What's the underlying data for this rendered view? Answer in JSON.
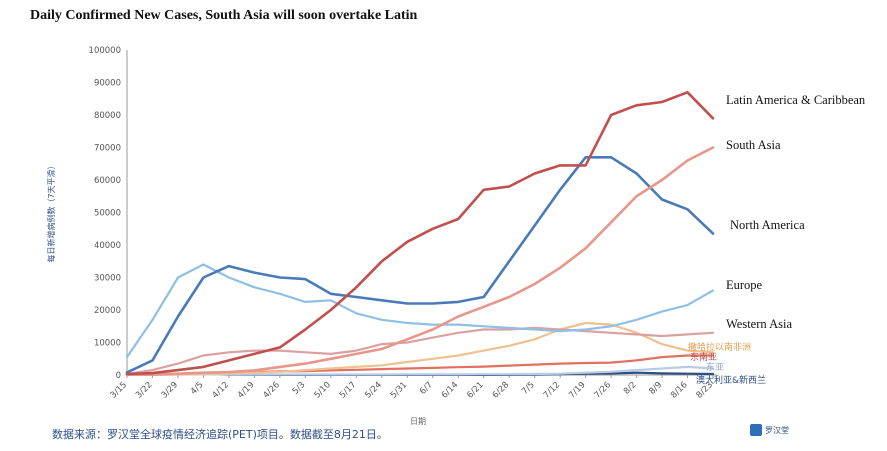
{
  "chart_data": {
    "type": "line",
    "title": "Daily Confirmed New Cases, South Asia will soon overtake Latin",
    "ylabel": "每日新增病例数（7天平滑）",
    "xlabel": "日期",
    "ylim": [
      0,
      100000
    ],
    "yticks": [
      0,
      10000,
      20000,
      30000,
      40000,
      50000,
      60000,
      70000,
      80000,
      90000,
      100000
    ],
    "x": [
      "3/15",
      "3/22",
      "3/29",
      "4/5",
      "4/12",
      "4/19",
      "4/26",
      "5/3",
      "5/10",
      "5/17",
      "5/24",
      "5/31",
      "6/7",
      "6/14",
      "6/21",
      "6/28",
      "7/5",
      "7/12",
      "7/19",
      "7/26",
      "8/2",
      "8/9",
      "8/16",
      "8/23"
    ],
    "series": [
      {
        "name": "Latin America & Caribbean",
        "color": "#c0504d",
        "values": [
          300,
          600,
          1500,
          2500,
          4500,
          6500,
          8500,
          14000,
          20000,
          27000,
          35000,
          41000,
          45000,
          48000,
          57000,
          58000,
          62000,
          64500,
          64500,
          80000,
          83000,
          84000,
          87000,
          79000
        ]
      },
      {
        "name": "South Asia",
        "color": "#e8968a",
        "values": [
          100,
          200,
          400,
          700,
          900,
          1400,
          2500,
          3500,
          5000,
          6500,
          8000,
          11000,
          14000,
          18000,
          21000,
          24000,
          28000,
          33000,
          39000,
          47000,
          55000,
          60000,
          66000,
          70000
        ]
      },
      {
        "name": "North America",
        "color": "#4a7ab8",
        "values": [
          800,
          4500,
          18000,
          30000,
          33500,
          31500,
          30000,
          29500,
          25000,
          24000,
          23000,
          22000,
          22000,
          22500,
          24000,
          35000,
          46000,
          57000,
          67000,
          67000,
          62000,
          54000,
          51000,
          43500
        ]
      },
      {
        "name": "Europe",
        "color": "#8fc0e4",
        "values": [
          5500,
          17000,
          30000,
          34000,
          30000,
          27000,
          25000,
          22500,
          23000,
          19000,
          17000,
          16000,
          15500,
          15500,
          15000,
          14500,
          14000,
          13500,
          14000,
          15000,
          17000,
          19500,
          21500,
          26000
        ]
      },
      {
        "name": "Western Asia",
        "color": "#dba0a0",
        "values": [
          300,
          1500,
          3500,
          6000,
          7000,
          7500,
          7500,
          7000,
          6500,
          7500,
          9500,
          10000,
          11500,
          13000,
          14000,
          14000,
          14500,
          14000,
          13500,
          13000,
          12500,
          12000,
          12500,
          13000
        ]
      },
      {
        "name": "撒哈拉以南非洲",
        "color": "#f0c090",
        "values": [
          50,
          100,
          200,
          350,
          500,
          700,
          1000,
          1500,
          2000,
          2500,
          3000,
          4000,
          5000,
          6000,
          7500,
          9000,
          11000,
          14000,
          16000,
          15500,
          13000,
          9500,
          7500,
          7000
        ]
      },
      {
        "name": "东南亚",
        "color": "#e07060",
        "values": [
          100,
          150,
          300,
          500,
          700,
          900,
          1100,
          1200,
          1400,
          1600,
          1800,
          2000,
          2200,
          2400,
          2600,
          2900,
          3200,
          3500,
          3700,
          3800,
          4500,
          5500,
          6000,
          6000
        ]
      },
      {
        "name": "东亚",
        "color": "#b8cce4",
        "values": [
          200,
          150,
          150,
          200,
          200,
          150,
          150,
          150,
          150,
          150,
          150,
          200,
          200,
          200,
          250,
          250,
          300,
          400,
          700,
          1000,
          1500,
          2000,
          2500,
          2000
        ]
      },
      {
        "name": "澳大利亚&新西兰",
        "color": "#2d4f86",
        "values": [
          50,
          100,
          200,
          300,
          100,
          50,
          20,
          20,
          20,
          20,
          20,
          20,
          20,
          20,
          20,
          50,
          100,
          250,
          400,
          500,
          700,
          500,
          400,
          300
        ]
      }
    ],
    "annotations": [
      "Latin America & Caribbean",
      "South Asia",
      "North America",
      "Europe",
      "Western Asia"
    ],
    "small_labels": [
      "撒哈拉以南非洲",
      "东南亚",
      "东亚",
      "澳大利亚&新西兰"
    ],
    "grid": false,
    "legend": "none"
  },
  "source_text": "数据来源：罗汉堂全球疫情经济追踪(PET)项目。数据截至8月21日。",
  "logo_text": "罗汉堂"
}
